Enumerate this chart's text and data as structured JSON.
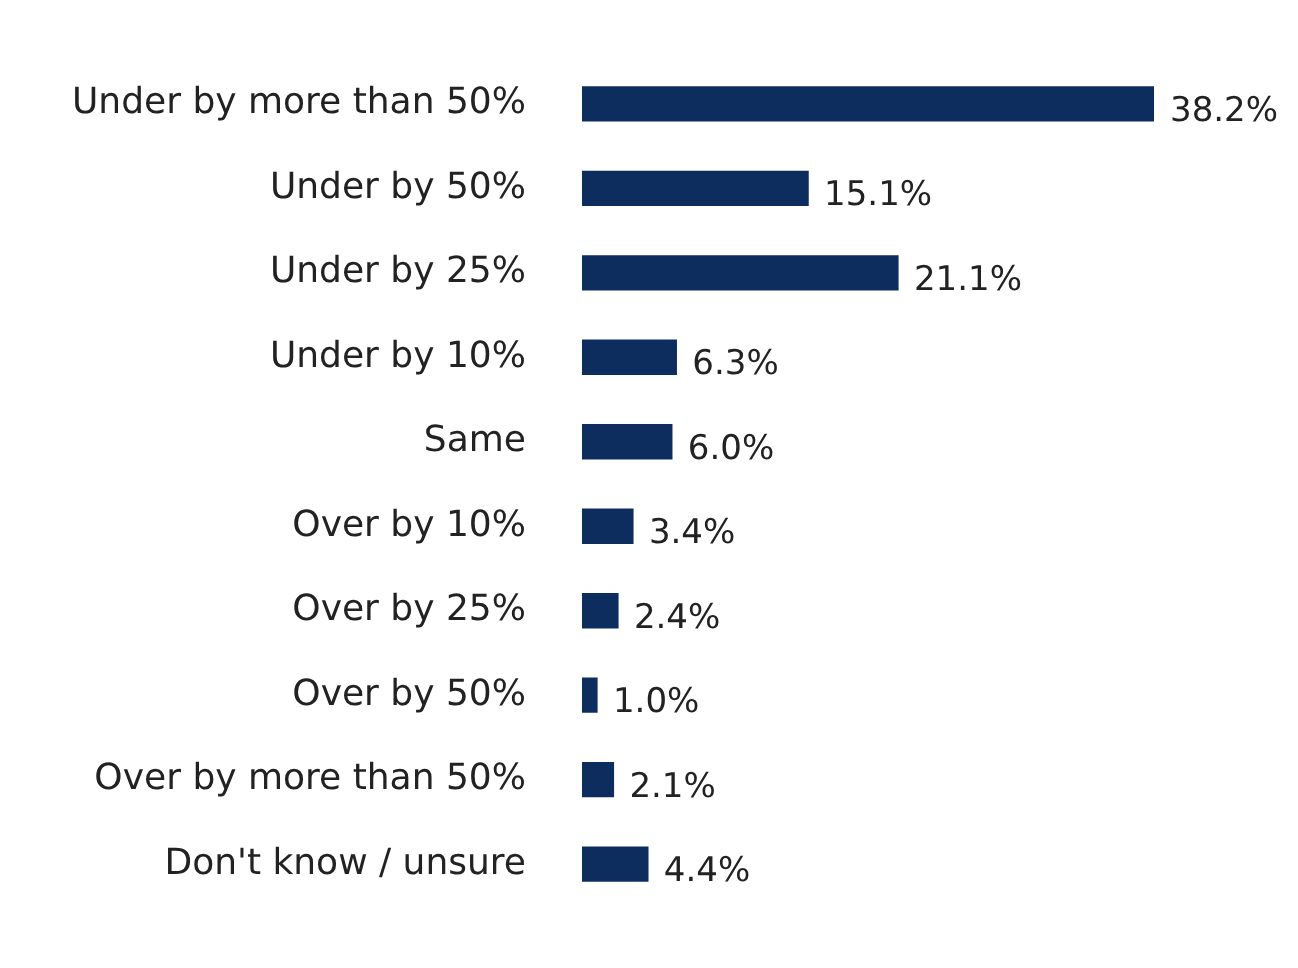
{
  "chart_data": {
    "type": "bar",
    "orientation": "horizontal",
    "categories": [
      "Under by more than 50%",
      "Under by 50%",
      "Under by 25%",
      "Under by 10%",
      "Same",
      "Over by 10%",
      "Over by 25%",
      "Over by 50%",
      "Over by more than 50%",
      "Don't know / unsure"
    ],
    "values": [
      38.2,
      15.1,
      21.1,
      6.3,
      6.0,
      3.4,
      2.4,
      1.0,
      2.1,
      4.4
    ],
    "value_labels": [
      "38.2%",
      "15.1%",
      "21.1%",
      "6.3%",
      "6.0%",
      "3.4%",
      "2.4%",
      "1.0%",
      "2.1%",
      "4.4%"
    ],
    "color": "#0c2d5e"
  }
}
